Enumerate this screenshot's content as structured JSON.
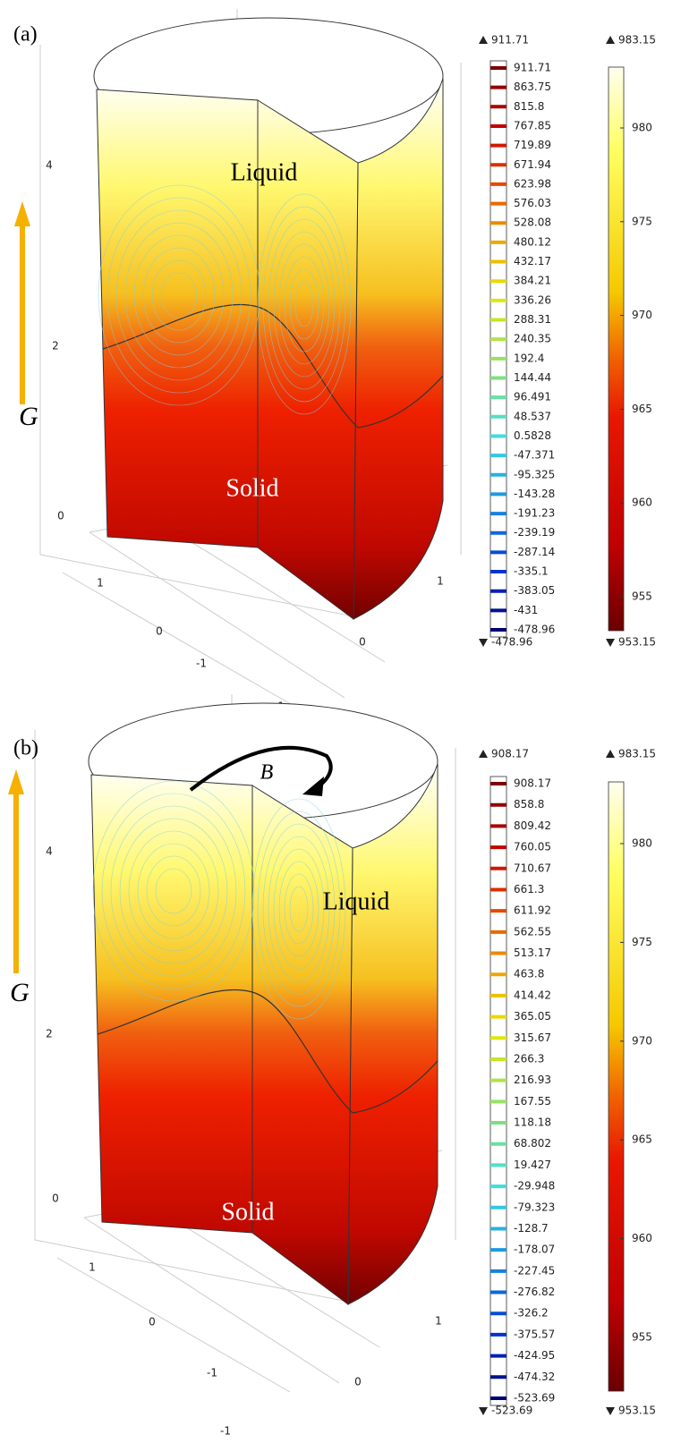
{
  "panels": [
    {
      "label": "(a)",
      "z_ticks": [
        "0",
        "2",
        "4"
      ],
      "x_ticks": [
        "1",
        "0",
        "-1"
      ],
      "y_ticks": [
        "1",
        "0",
        "-1"
      ],
      "liquid": "Liquid",
      "solid": "Solid",
      "gravity": "G",
      "contour_legend": {
        "max": "911.71",
        "min": "-478.96",
        "levels": [
          "911.71",
          "863.75",
          "815.8",
          "767.85",
          "719.89",
          "671.94",
          "623.98",
          "576.03",
          "528.08",
          "480.12",
          "432.17",
          "384.21",
          "336.26",
          "288.31",
          "240.35",
          "192.4",
          "144.44",
          "96.491",
          "48.537",
          "0.5828",
          "-47.371",
          "-95.325",
          "-143.28",
          "-191.23",
          "-239.19",
          "-287.14",
          "-335.1",
          "-383.05",
          "-431",
          "-478.96"
        ]
      },
      "temperature_legend": {
        "max": "983.15",
        "min": "953.15",
        "ticks": [
          "980",
          "975",
          "970",
          "965",
          "960",
          "955"
        ]
      }
    },
    {
      "label": "(b)",
      "z_ticks": [
        "0",
        "2",
        "4"
      ],
      "x_ticks": [
        "1",
        "0",
        "-1"
      ],
      "y_ticks": [
        "1",
        "0",
        "-1"
      ],
      "liquid": "Liquid",
      "solid": "Solid",
      "gravity": "G",
      "field": "B",
      "contour_legend": {
        "max": "908.17",
        "min": "-523.69",
        "levels": [
          "908.17",
          "858.8",
          "809.42",
          "760.05",
          "710.67",
          "661.3",
          "611.92",
          "562.55",
          "513.17",
          "463.8",
          "414.42",
          "365.05",
          "315.67",
          "266.3",
          "216.93",
          "167.55",
          "118.18",
          "68.802",
          "19.427",
          "-29.948",
          "-79.323",
          "-128.7",
          "-178.07",
          "-227.45",
          "-276.82",
          "-326.2",
          "-375.57",
          "-424.95",
          "-474.32",
          "-523.69"
        ]
      },
      "temperature_legend": {
        "max": "983.15",
        "min": "953.15",
        "ticks": [
          "980",
          "975",
          "970",
          "965",
          "960",
          "955"
        ]
      }
    }
  ]
}
